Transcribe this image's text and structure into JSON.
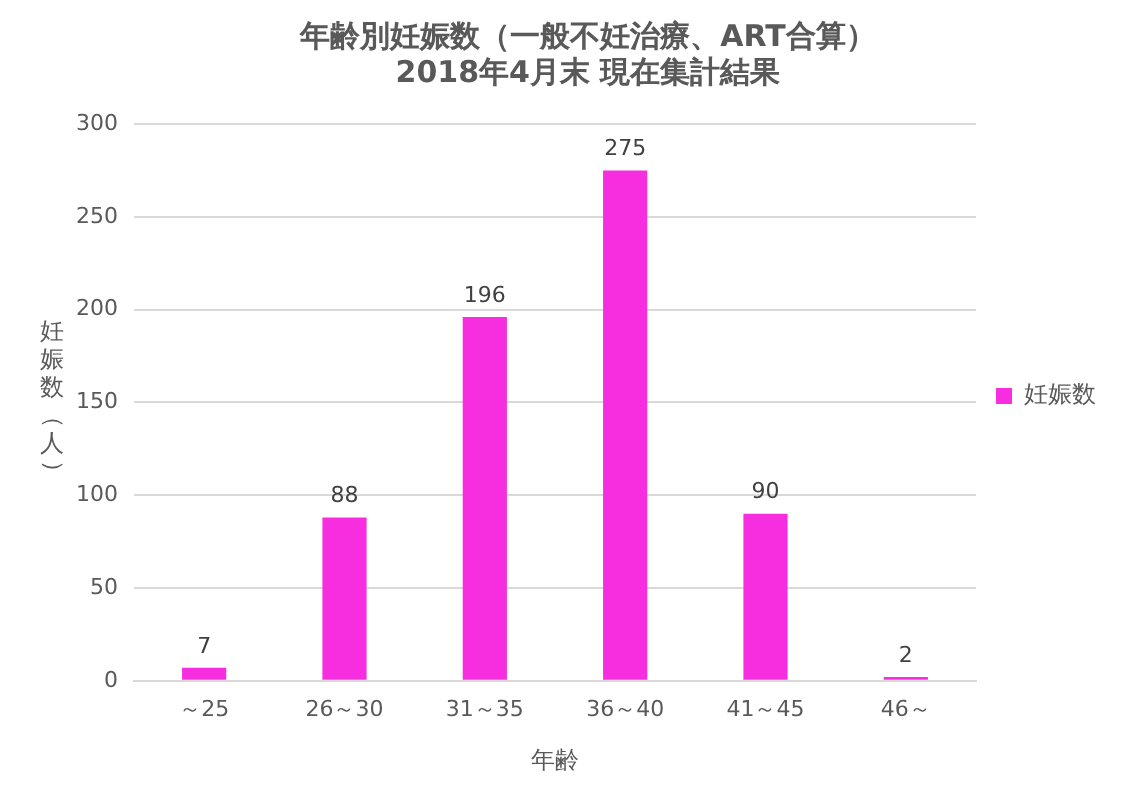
{
  "chart_data": {
    "type": "bar",
    "title": "年齢別妊娠数（一般不妊治療、ART合算）\n2018年4月末 現在集計結果",
    "xlabel": "年齢",
    "ylabel": "妊娠数（人）",
    "categories": [
      "～25",
      "26～30",
      "31～35",
      "36～40",
      "41～45",
      "46～"
    ],
    "series": [
      {
        "name": "妊娠数",
        "color": "#f72ee0",
        "values": [
          7,
          88,
          196,
          275,
          90,
          2
        ]
      }
    ],
    "ylim": [
      0,
      300
    ],
    "yticks": [
      0,
      50,
      100,
      150,
      200,
      250,
      300
    ],
    "grid": "y",
    "legend": "right",
    "data_labels": true
  }
}
